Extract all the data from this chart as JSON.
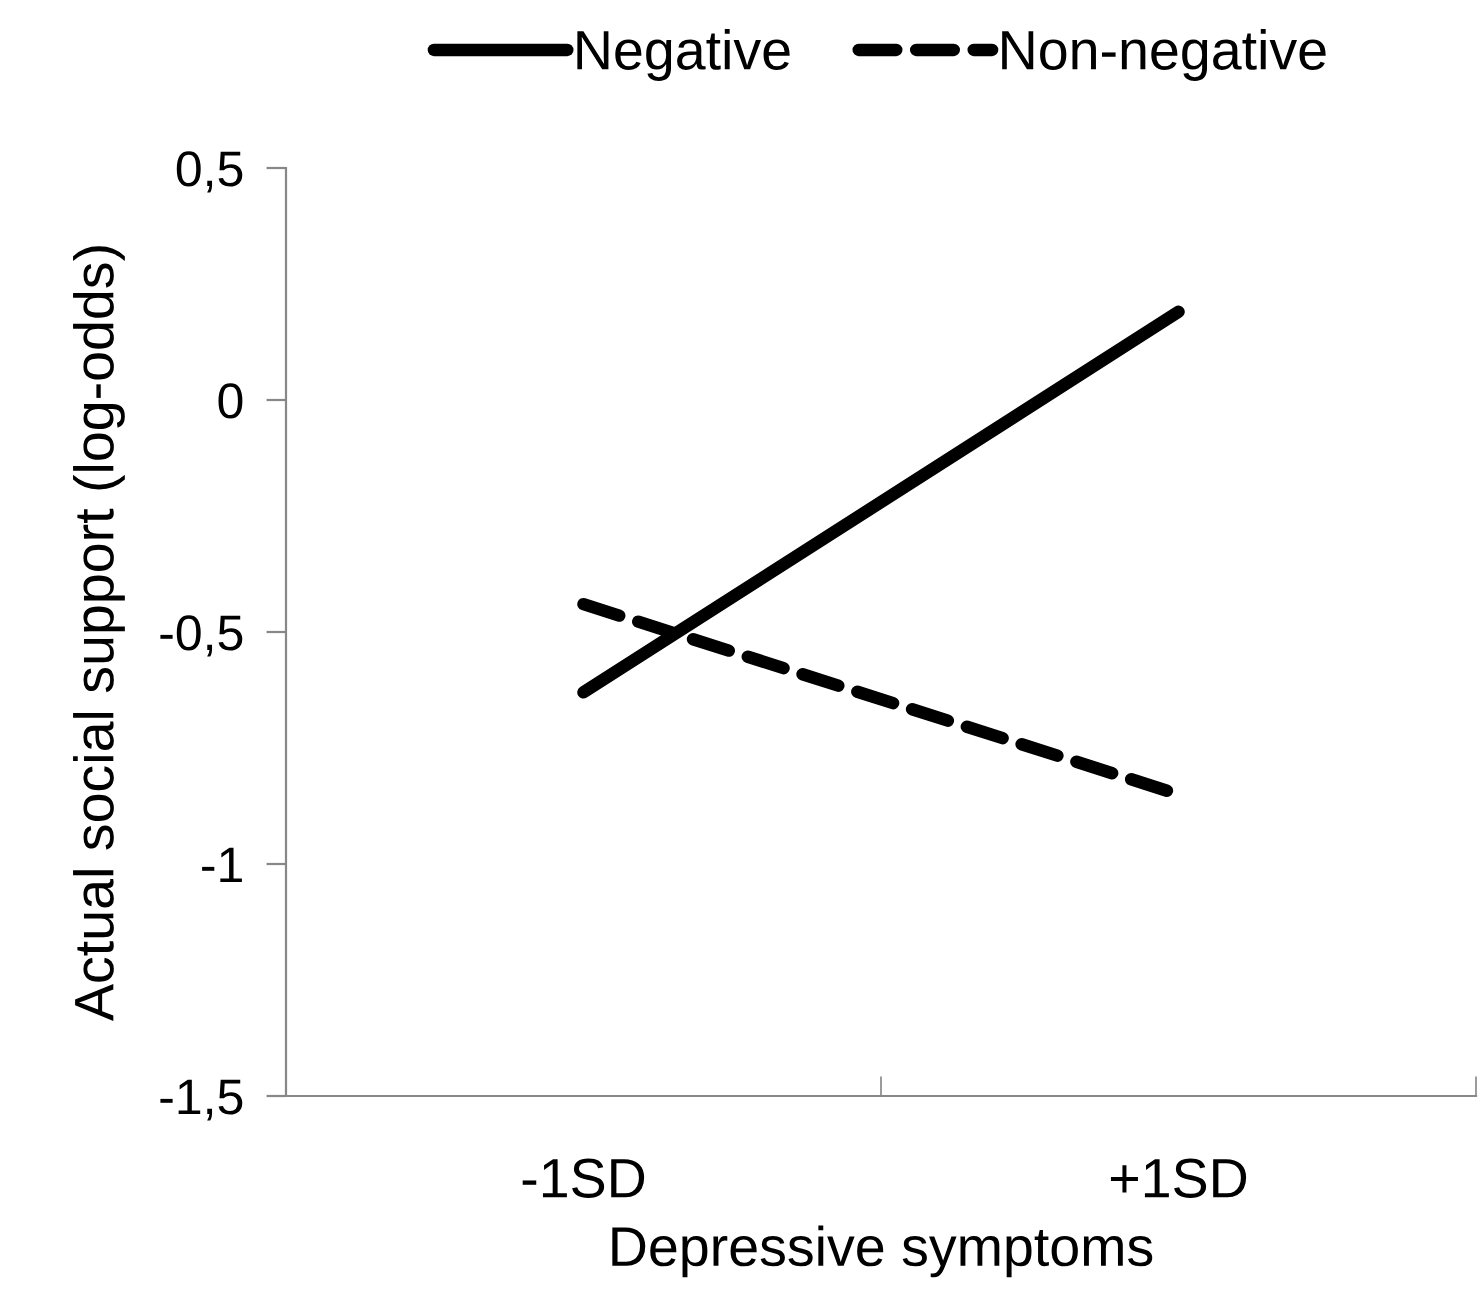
{
  "chart_data": {
    "type": "line",
    "xlabel": "Depressive symptoms",
    "ylabel": "Actual social support (log-odds)",
    "categories": [
      "-1SD",
      "+1SD"
    ],
    "series": [
      {
        "name": "Negative",
        "color": "#000000",
        "line_style": "solid",
        "values": [
          -0.63,
          0.19
        ]
      },
      {
        "name": "Non-negative",
        "color": "#000000",
        "line_style": "dashed",
        "values": [
          -0.44,
          -0.85
        ]
      }
    ],
    "ylim": [
      -1.5,
      0.5
    ],
    "yticks": [
      {
        "value": -1.5,
        "label": "-1,5"
      },
      {
        "value": -1,
        "label": "-1"
      },
      {
        "value": -0.5,
        "label": "-0,5"
      },
      {
        "value": 0,
        "label": "0"
      },
      {
        "value": 0.5,
        "label": "0,5"
      }
    ],
    "grid": false,
    "legend": "top",
    "marker": "none"
  }
}
